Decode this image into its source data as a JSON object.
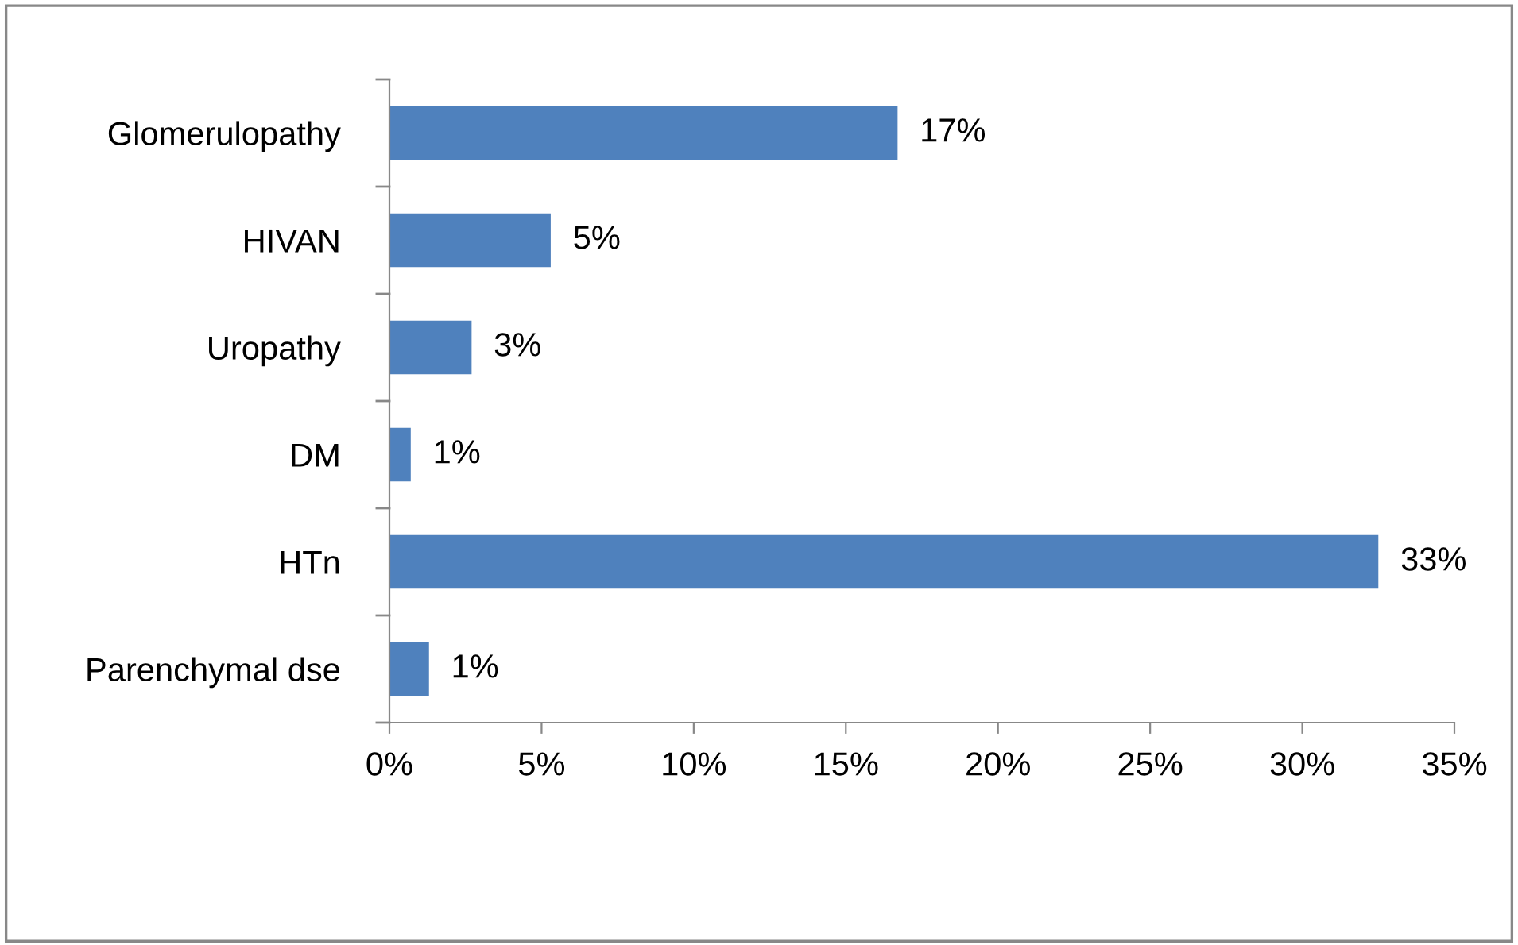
{
  "chart_data": {
    "type": "bar",
    "orientation": "horizontal",
    "categories": [
      "Glomerulopathy",
      "HIVAN",
      "Uropathy",
      "DM",
      "HTn",
      "Parenchymal dse"
    ],
    "values": [
      16.7,
      5.3,
      2.7,
      0.7,
      32.5,
      1.3
    ],
    "value_labels": [
      "17%",
      "5%",
      "3%",
      "1%",
      "33%",
      "1%"
    ],
    "color": "#4f81bd",
    "xlim": [
      0,
      35
    ],
    "xticks": [
      {
        "value": 0,
        "label": "0%"
      },
      {
        "value": 5,
        "label": "5%"
      },
      {
        "value": 10,
        "label": "10%"
      },
      {
        "value": 15,
        "label": "15%"
      },
      {
        "value": 20,
        "label": "20%"
      },
      {
        "value": 25,
        "label": "25%"
      },
      {
        "value": 30,
        "label": "30%"
      },
      {
        "value": 35,
        "label": "35%"
      }
    ],
    "grid": false
  }
}
